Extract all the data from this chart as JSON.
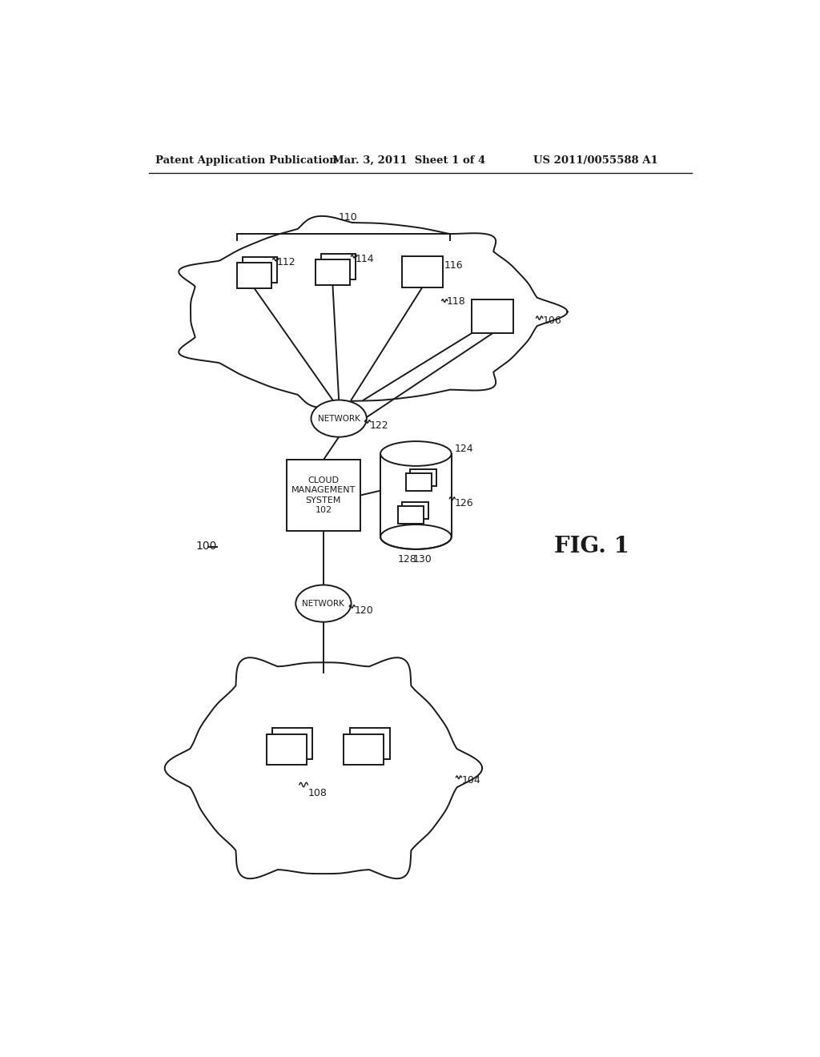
{
  "bg_color": "#ffffff",
  "line_color": "#1a1a1a",
  "header_left": "Patent Application Publication",
  "header_mid": "Mar. 3, 2011  Sheet 1 of 4",
  "header_right": "US 2011/0055588 A1",
  "fig_label": "FIG. 1",
  "label_100": "100",
  "label_102": "102",
  "label_104": "104",
  "label_106": "106",
  "label_108": "108",
  "label_110": "110",
  "label_112": "112",
  "label_114": "114",
  "label_116": "116",
  "label_118": "118",
  "label_120": "120",
  "label_122": "122",
  "label_124": "124",
  "label_126": "126",
  "label_128": "128",
  "label_130": "130"
}
